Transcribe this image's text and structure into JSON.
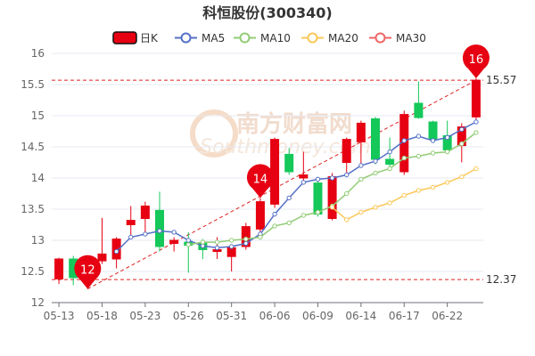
{
  "chart_data": {
    "type": "candlestick",
    "title": "科恒股份(300340)",
    "legend": {
      "placement": "top",
      "items": [
        {
          "label": "日K",
          "color": "#e60012",
          "kind": "box"
        },
        {
          "label": "MA5",
          "color": "#5470c6",
          "kind": "circle"
        },
        {
          "label": "MA10",
          "color": "#91cc75",
          "kind": "circle"
        },
        {
          "label": "MA20",
          "color": "#fac858",
          "kind": "circle"
        },
        {
          "label": "MA30",
          "color": "#ee6666",
          "kind": "circle"
        }
      ]
    },
    "ylim": [
      12,
      16
    ],
    "yticks": [
      "12",
      "12.5",
      "13",
      "13.5",
      "14",
      "14.5",
      "15",
      "15.5",
      "16"
    ],
    "xtick_labels": [
      {
        "index": 0,
        "label": "05-13"
      },
      {
        "index": 3,
        "label": "05-18"
      },
      {
        "index": 6,
        "label": "05-23"
      },
      {
        "index": 9,
        "label": "05-26"
      },
      {
        "index": 12,
        "label": "05-31"
      },
      {
        "index": 15,
        "label": "06-06"
      },
      {
        "index": 18,
        "label": "06-09"
      },
      {
        "index": 21,
        "label": "06-14"
      },
      {
        "index": 24,
        "label": "06-17"
      },
      {
        "index": 27,
        "label": "06-22"
      }
    ],
    "candles": [
      {
        "o": 12.38,
        "c": 12.7,
        "h": 12.72,
        "l": 12.3
      },
      {
        "o": 12.7,
        "c": 12.4,
        "h": 12.75,
        "l": 12.28
      },
      {
        "o": 12.62,
        "c": 12.72,
        "h": 12.75,
        "l": 12.22
      },
      {
        "o": 12.67,
        "c": 12.78,
        "h": 13.36,
        "l": 12.62
      },
      {
        "o": 12.7,
        "c": 13.02,
        "h": 13.05,
        "l": 12.55
      },
      {
        "o": 13.25,
        "c": 13.32,
        "h": 13.55,
        "l": 13.08
      },
      {
        "o": 13.35,
        "c": 13.55,
        "h": 13.62,
        "l": 13.12
      },
      {
        "o": 13.48,
        "c": 12.9,
        "h": 13.78,
        "l": 12.82
      },
      {
        "o": 12.95,
        "c": 13.0,
        "h": 13.05,
        "l": 12.82
      },
      {
        "o": 12.97,
        "c": 12.92,
        "h": 13.13,
        "l": 12.48
      },
      {
        "o": 12.96,
        "c": 12.85,
        "h": 13.02,
        "l": 12.7
      },
      {
        "o": 12.82,
        "c": 12.85,
        "h": 13.05,
        "l": 12.7
      },
      {
        "o": 12.74,
        "c": 12.88,
        "h": 12.92,
        "l": 12.5
      },
      {
        "o": 12.9,
        "c": 13.22,
        "h": 13.28,
        "l": 12.85
      },
      {
        "o": 13.18,
        "c": 13.62,
        "h": 13.68,
        "l": 13.12
      },
      {
        "o": 13.58,
        "c": 14.62,
        "h": 14.65,
        "l": 13.52
      },
      {
        "o": 14.38,
        "c": 14.1,
        "h": 14.48,
        "l": 14.05
      },
      {
        "o": 14.0,
        "c": 14.05,
        "h": 14.42,
        "l": 13.95
      },
      {
        "o": 13.92,
        "c": 13.42,
        "h": 14.02,
        "l": 13.38
      },
      {
        "o": 13.35,
        "c": 14.02,
        "h": 14.08,
        "l": 13.32
      },
      {
        "o": 14.25,
        "c": 14.62,
        "h": 14.65,
        "l": 14.05
      },
      {
        "o": 14.58,
        "c": 14.88,
        "h": 14.92,
        "l": 14.2
      },
      {
        "o": 14.95,
        "c": 14.3,
        "h": 14.98,
        "l": 14.22
      },
      {
        "o": 14.3,
        "c": 14.22,
        "h": 14.65,
        "l": 14.18
      },
      {
        "o": 14.1,
        "c": 15.02,
        "h": 15.08,
        "l": 14.05
      },
      {
        "o": 15.2,
        "c": 14.97,
        "h": 15.55,
        "l": 14.95
      },
      {
        "o": 14.9,
        "c": 14.62,
        "h": 14.92,
        "l": 14.58
      },
      {
        "o": 14.68,
        "c": 14.45,
        "h": 14.92,
        "l": 14.4
      },
      {
        "o": 14.52,
        "c": 14.82,
        "h": 14.88,
        "l": 14.25
      },
      {
        "o": 14.98,
        "c": 15.57,
        "h": 15.6,
        "l": 14.88
      }
    ],
    "ma_series": [
      {
        "name": "MA5",
        "color": "#5470c6",
        "values": [
          null,
          null,
          null,
          null,
          12.82,
          13.05,
          13.1,
          13.15,
          13.13,
          13.0,
          12.91,
          12.88,
          12.9,
          12.95,
          13.1,
          13.42,
          13.68,
          13.93,
          13.98,
          14.0,
          14.05,
          14.2,
          14.27,
          14.42,
          14.6,
          14.67,
          14.6,
          14.65,
          14.78,
          14.9
        ]
      },
      {
        "name": "MA10",
        "color": "#91cc75",
        "values": [
          null,
          null,
          null,
          null,
          null,
          null,
          null,
          null,
          null,
          12.93,
          12.97,
          12.97,
          13.0,
          13.02,
          13.05,
          13.23,
          13.28,
          13.4,
          13.45,
          13.55,
          13.75,
          13.98,
          14.08,
          14.15,
          14.32,
          14.35,
          14.4,
          14.42,
          14.55,
          14.73
        ]
      },
      {
        "name": "MA20",
        "color": "#fac858",
        "values": [
          null,
          null,
          null,
          null,
          null,
          null,
          null,
          null,
          null,
          null,
          null,
          null,
          null,
          null,
          null,
          null,
          null,
          null,
          null,
          13.53,
          13.33,
          13.45,
          13.53,
          13.6,
          13.72,
          13.8,
          13.85,
          13.93,
          14.02,
          14.15
        ]
      },
      {
        "name": "MA30",
        "color": "#ee6666",
        "values": []
      }
    ],
    "markers": [
      {
        "label": "12",
        "index": 2,
        "value": 12.22
      },
      {
        "label": "14",
        "index": 14,
        "value": 13.68
      },
      {
        "label": "16",
        "index": 29,
        "value": 15.6
      }
    ],
    "reference_lines": [
      {
        "label": "15.57",
        "value": 15.57
      },
      {
        "label": "12.37",
        "value": 12.37
      }
    ],
    "trend_line": {
      "from": {
        "index": 2,
        "value": 12.22
      },
      "to": {
        "index": 29,
        "value": 15.57
      }
    },
    "watermark": {
      "text": "南方财富网",
      "subtext": "Southmoney.com"
    },
    "colors": {
      "up": "#e60012",
      "down": "#14c85a",
      "ref_line": "#e02020",
      "grid": "#e6e9f2",
      "axis_text": "#666666",
      "title": "#333333"
    }
  }
}
